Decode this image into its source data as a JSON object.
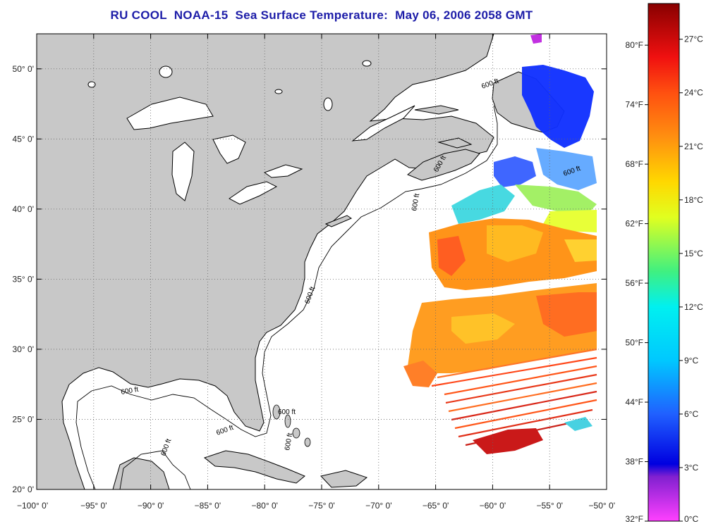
{
  "title": "RU COOL  NOAA-15  Sea Surface Temperature:  May 06, 2006 2058 GMT",
  "map": {
    "lon_range": [
      -100,
      -50
    ],
    "lat_range": [
      20,
      52.5
    ],
    "lon_ticks": [
      {
        "value": -100,
        "label": "−100° 0'"
      },
      {
        "value": -95,
        "label": "−95° 0'"
      },
      {
        "value": -90,
        "label": "−90° 0'"
      },
      {
        "value": -85,
        "label": "−85° 0'"
      },
      {
        "value": -80,
        "label": "−80° 0'"
      },
      {
        "value": -75,
        "label": "−75° 0'"
      },
      {
        "value": -70,
        "label": "−70° 0'"
      },
      {
        "value": -65,
        "label": "−65° 0'"
      },
      {
        "value": -60,
        "label": "−60° 0'"
      },
      {
        "value": -55,
        "label": "−55° 0'"
      },
      {
        "value": -50,
        "label": "−50° 0'"
      }
    ],
    "lat_ticks": [
      {
        "value": 20,
        "label": "20° 0'"
      },
      {
        "value": 25,
        "label": "25° 0'"
      },
      {
        "value": 30,
        "label": "30° 0'"
      },
      {
        "value": 35,
        "label": "35° 0'"
      },
      {
        "value": 40,
        "label": "40° 0'"
      },
      {
        "value": 45,
        "label": "45° 0'"
      },
      {
        "value": 50,
        "label": "50° 0'"
      }
    ],
    "isobath_labels": [
      "600 ft",
      "600 ft",
      "600 ft",
      "600 ft",
      "600 ft",
      "600 ft",
      "600 ft",
      "600 ft",
      "600 ft",
      "600 ft"
    ],
    "colors": {
      "land": "#c8c8c8",
      "water": "#ffffff",
      "coast": "#000000"
    }
  },
  "colorbar": {
    "range_c": [
      0,
      29
    ],
    "celsius": [
      {
        "value": 0,
        "label": "0°C"
      },
      {
        "value": 3,
        "label": "3°C"
      },
      {
        "value": 6,
        "label": "6°C"
      },
      {
        "value": 9,
        "label": "9°C"
      },
      {
        "value": 12,
        "label": "12°C"
      },
      {
        "value": 15,
        "label": "15°C"
      },
      {
        "value": 18,
        "label": "18°C"
      },
      {
        "value": 21,
        "label": "21°C"
      },
      {
        "value": 24,
        "label": "24°C"
      },
      {
        "value": 27,
        "label": "27°C"
      }
    ],
    "fahrenheit": [
      {
        "value": 32,
        "label": "32°F"
      },
      {
        "value": 38,
        "label": "38°F"
      },
      {
        "value": 44,
        "label": "44°F"
      },
      {
        "value": 50,
        "label": "50°F"
      },
      {
        "value": 56,
        "label": "56°F"
      },
      {
        "value": 62,
        "label": "62°F"
      },
      {
        "value": 68,
        "label": "68°F"
      },
      {
        "value": 74,
        "label": "74°F"
      },
      {
        "value": 80,
        "label": "80°F"
      }
    ],
    "stops": [
      {
        "value": 0,
        "color": "#ff40ff"
      },
      {
        "value": 2.5,
        "color": "#8020d0"
      },
      {
        "value": 3.2,
        "color": "#0000e0"
      },
      {
        "value": 6,
        "color": "#2060ff"
      },
      {
        "value": 9,
        "color": "#00c8ff"
      },
      {
        "value": 12,
        "color": "#00f0f0"
      },
      {
        "value": 14,
        "color": "#40f080"
      },
      {
        "value": 17,
        "color": "#e0ff20"
      },
      {
        "value": 19,
        "color": "#ffd800"
      },
      {
        "value": 21.5,
        "color": "#ff9010"
      },
      {
        "value": 24,
        "color": "#ff5010"
      },
      {
        "value": 26,
        "color": "#f01010"
      },
      {
        "value": 29,
        "color": "#880000"
      }
    ]
  }
}
